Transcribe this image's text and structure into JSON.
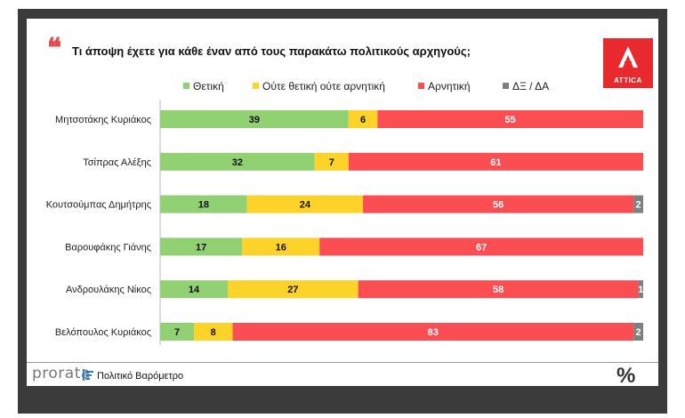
{
  "title": "Τι άποψη έχετε για κάθε έναν από τους παρακάτω πολιτικούς αρχηγούς;",
  "quote_mark": "❝",
  "logo": {
    "label": "ATTICA"
  },
  "footer": {
    "brand": "prorata",
    "label": "Πολιτικό Βαρόμετρο",
    "percent_icon": "%"
  },
  "chart_data": {
    "type": "bar",
    "orientation": "horizontal",
    "stacked": true,
    "title": "Τι άποψη έχετε για κάθε έναν από τους παρακάτω πολιτικούς αρχηγούς;",
    "xlabel": "",
    "ylabel": "",
    "xlim": [
      0,
      100
    ],
    "legend_position": "top",
    "categories": [
      "Μητσοτάκης Κυριάκος",
      "Τσίπρας Αλέξης",
      "Κουτσούμπας Δημήτρης",
      "Βαρουφάκης Γιάνης",
      "Ανδρουλάκης Νίκος",
      "Βελόπουλος Κυριάκος"
    ],
    "series": [
      {
        "name": "Θετική",
        "color": "#92d074",
        "values": [
          39,
          32,
          18,
          17,
          14,
          7
        ]
      },
      {
        "name": "Ούτε θετική ούτε αρνητική",
        "color": "#fdd32a",
        "values": [
          6,
          7,
          24,
          16,
          27,
          8
        ]
      },
      {
        "name": "Αρνητική",
        "color": "#fa4e52",
        "values": [
          55,
          61,
          56,
          67,
          58,
          83
        ]
      },
      {
        "name": "ΔΞ / ΔΑ",
        "color": "#7f7f7f",
        "values": [
          0,
          0,
          2,
          0,
          1,
          2
        ]
      }
    ]
  }
}
